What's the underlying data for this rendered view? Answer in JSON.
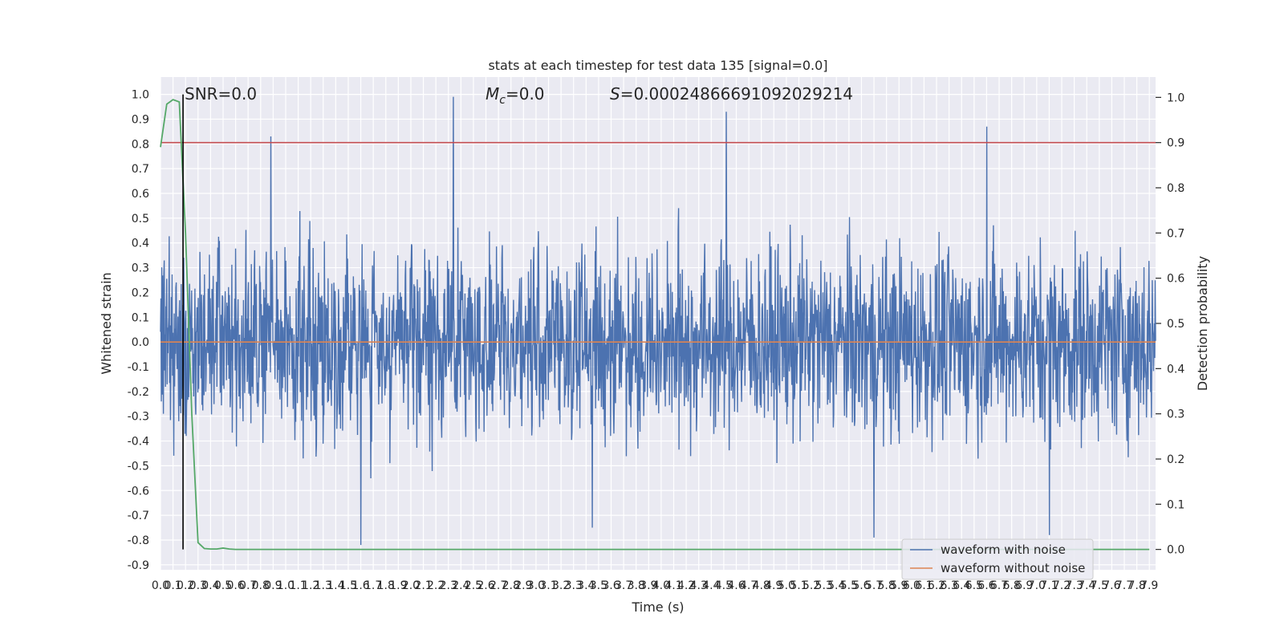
{
  "chart_data": {
    "type": "line",
    "title": "stats at each timestep for test data 135 [signal=0.0]",
    "xlabel": "Time (s)",
    "ylabel": "Whitened strain",
    "y2label": "Detection probability",
    "xlim": [
      0.0,
      7.95
    ],
    "ylim": [
      -0.92,
      1.07
    ],
    "y2lim": [
      -0.045,
      1.045
    ],
    "x_tick_values": [
      0.0,
      0.1,
      0.2,
      0.3,
      0.4,
      0.5,
      0.6,
      0.7,
      0.8,
      0.9,
      1.0,
      1.1,
      1.2,
      1.3,
      1.4,
      1.5,
      1.6,
      1.7,
      1.8,
      1.9,
      2.0,
      2.1,
      2.2,
      2.3,
      2.4,
      2.5,
      2.6,
      2.7,
      2.8,
      2.9,
      3.0,
      3.1,
      3.2,
      3.3,
      3.4,
      3.5,
      3.6,
      3.7,
      3.8,
      3.9,
      4.0,
      4.1,
      4.2,
      4.3,
      4.4,
      4.5,
      4.6,
      4.7,
      4.8,
      4.9,
      5.0,
      5.1,
      5.2,
      5.3,
      5.4,
      5.5,
      5.6,
      5.7,
      5.8,
      5.9,
      6.0,
      6.1,
      6.2,
      6.3,
      6.4,
      6.5,
      6.6,
      6.7,
      6.8,
      6.9,
      7.0,
      7.1,
      7.2,
      7.3,
      7.4,
      7.5,
      7.6,
      7.7,
      7.8,
      7.9
    ],
    "x_tick_labels": [
      "0.0",
      "0.1",
      "0.2",
      "0.3",
      "0.4",
      "0.5",
      "0.6",
      "0.7",
      "0.8",
      "0.9",
      "1.0",
      "1.1",
      "1.2",
      "1.3",
      "1.4",
      "1.5",
      "1.6",
      "1.7",
      "1.8",
      "1.9",
      "2.0",
      "2.1",
      "2.2",
      "2.3",
      "2.4",
      "2.5",
      "2.6",
      "2.7",
      "2.8",
      "2.9",
      "3.0",
      "3.1",
      "3.2",
      "3.3",
      "3.4",
      "3.5",
      "3.6",
      "3.7",
      "3.8",
      "3.9",
      "4.0",
      "4.1",
      "4.2",
      "4.3",
      "4.4",
      "4.5",
      "4.6",
      "4.7",
      "4.8",
      "4.9",
      "5.0",
      "5.1",
      "5.2",
      "5.3",
      "5.4",
      "5.5",
      "5.6",
      "5.7",
      "5.8",
      "5.9",
      "6.0",
      "6.1",
      "6.2",
      "6.3",
      "6.4",
      "6.5",
      "6.6",
      "6.7",
      "6.8",
      "6.9",
      "7.0",
      "7.1",
      "7.2",
      "7.3",
      "7.4",
      "7.5",
      "7.6",
      "7.7",
      "7.8",
      "7.9"
    ],
    "y_tick_labels": [
      "1.0",
      "0.9",
      "0.8",
      "0.7",
      "0.6",
      "0.5",
      "0.4",
      "0.3",
      "0.2",
      "0.1",
      "0.0",
      "-0.1",
      "-0.2",
      "-0.3",
      "-0.4",
      "-0.5",
      "-0.6",
      "-0.7",
      "-0.8",
      "-0.9"
    ],
    "y2_tick_labels": [
      "1.0",
      "0.9",
      "0.8",
      "0.7",
      "0.6",
      "0.5",
      "0.4",
      "0.3",
      "0.2",
      "0.1",
      "0.0"
    ],
    "series": [
      {
        "name": "waveform with noise",
        "color": "#4c72b0",
        "axis": "left",
        "description_points": "dense noise, band mostly within ±0.4, spikes listed",
        "spikes": [
          {
            "x": 0.88,
            "y": 0.83
          },
          {
            "x": 2.34,
            "y": 0.99
          },
          {
            "x": 4.52,
            "y": 0.93
          },
          {
            "x": 6.6,
            "y": 0.87
          },
          {
            "x": 1.6,
            "y": -0.82
          },
          {
            "x": 3.45,
            "y": -0.75
          },
          {
            "x": 5.7,
            "y": -0.79
          },
          {
            "x": 7.1,
            "y": -0.78
          }
        ]
      },
      {
        "name": "waveform without noise",
        "color": "#dd8452",
        "axis": "left",
        "x": [
          0.0,
          7.95
        ],
        "y": [
          0.0,
          0.0
        ]
      },
      {
        "color": "#55a868",
        "axis": "right",
        "x": [
          0.0,
          0.05,
          0.1,
          0.15,
          0.2,
          0.25,
          0.3,
          0.35,
          0.4,
          0.45,
          0.5,
          0.55,
          0.6,
          7.9
        ],
        "y": [
          0.89,
          0.985,
          0.995,
          0.99,
          0.7,
          0.3,
          0.015,
          0.002,
          0.001,
          0.001,
          0.003,
          0.001,
          0.0,
          0.0
        ]
      }
    ],
    "threshold_line": {
      "axis": "right",
      "value": 0.9,
      "color": "#c44e52"
    },
    "vertical_marker": {
      "x": 0.18,
      "color": "#000000"
    },
    "annotations": {
      "snr": "SNR=0.0",
      "mc_symbol": "M",
      "mc_sub": "c",
      "mc_value": "=0.0",
      "s_symbol": "S",
      "s_value": "=0.00024866691092029214"
    },
    "legend": {
      "placement": "lower-right",
      "entries": [
        {
          "label": "waveform with noise",
          "color": "#4c72b0"
        },
        {
          "label": "waveform without noise",
          "color": "#dd8452"
        }
      ]
    },
    "grid": true,
    "background": "#eaeaf2"
  }
}
